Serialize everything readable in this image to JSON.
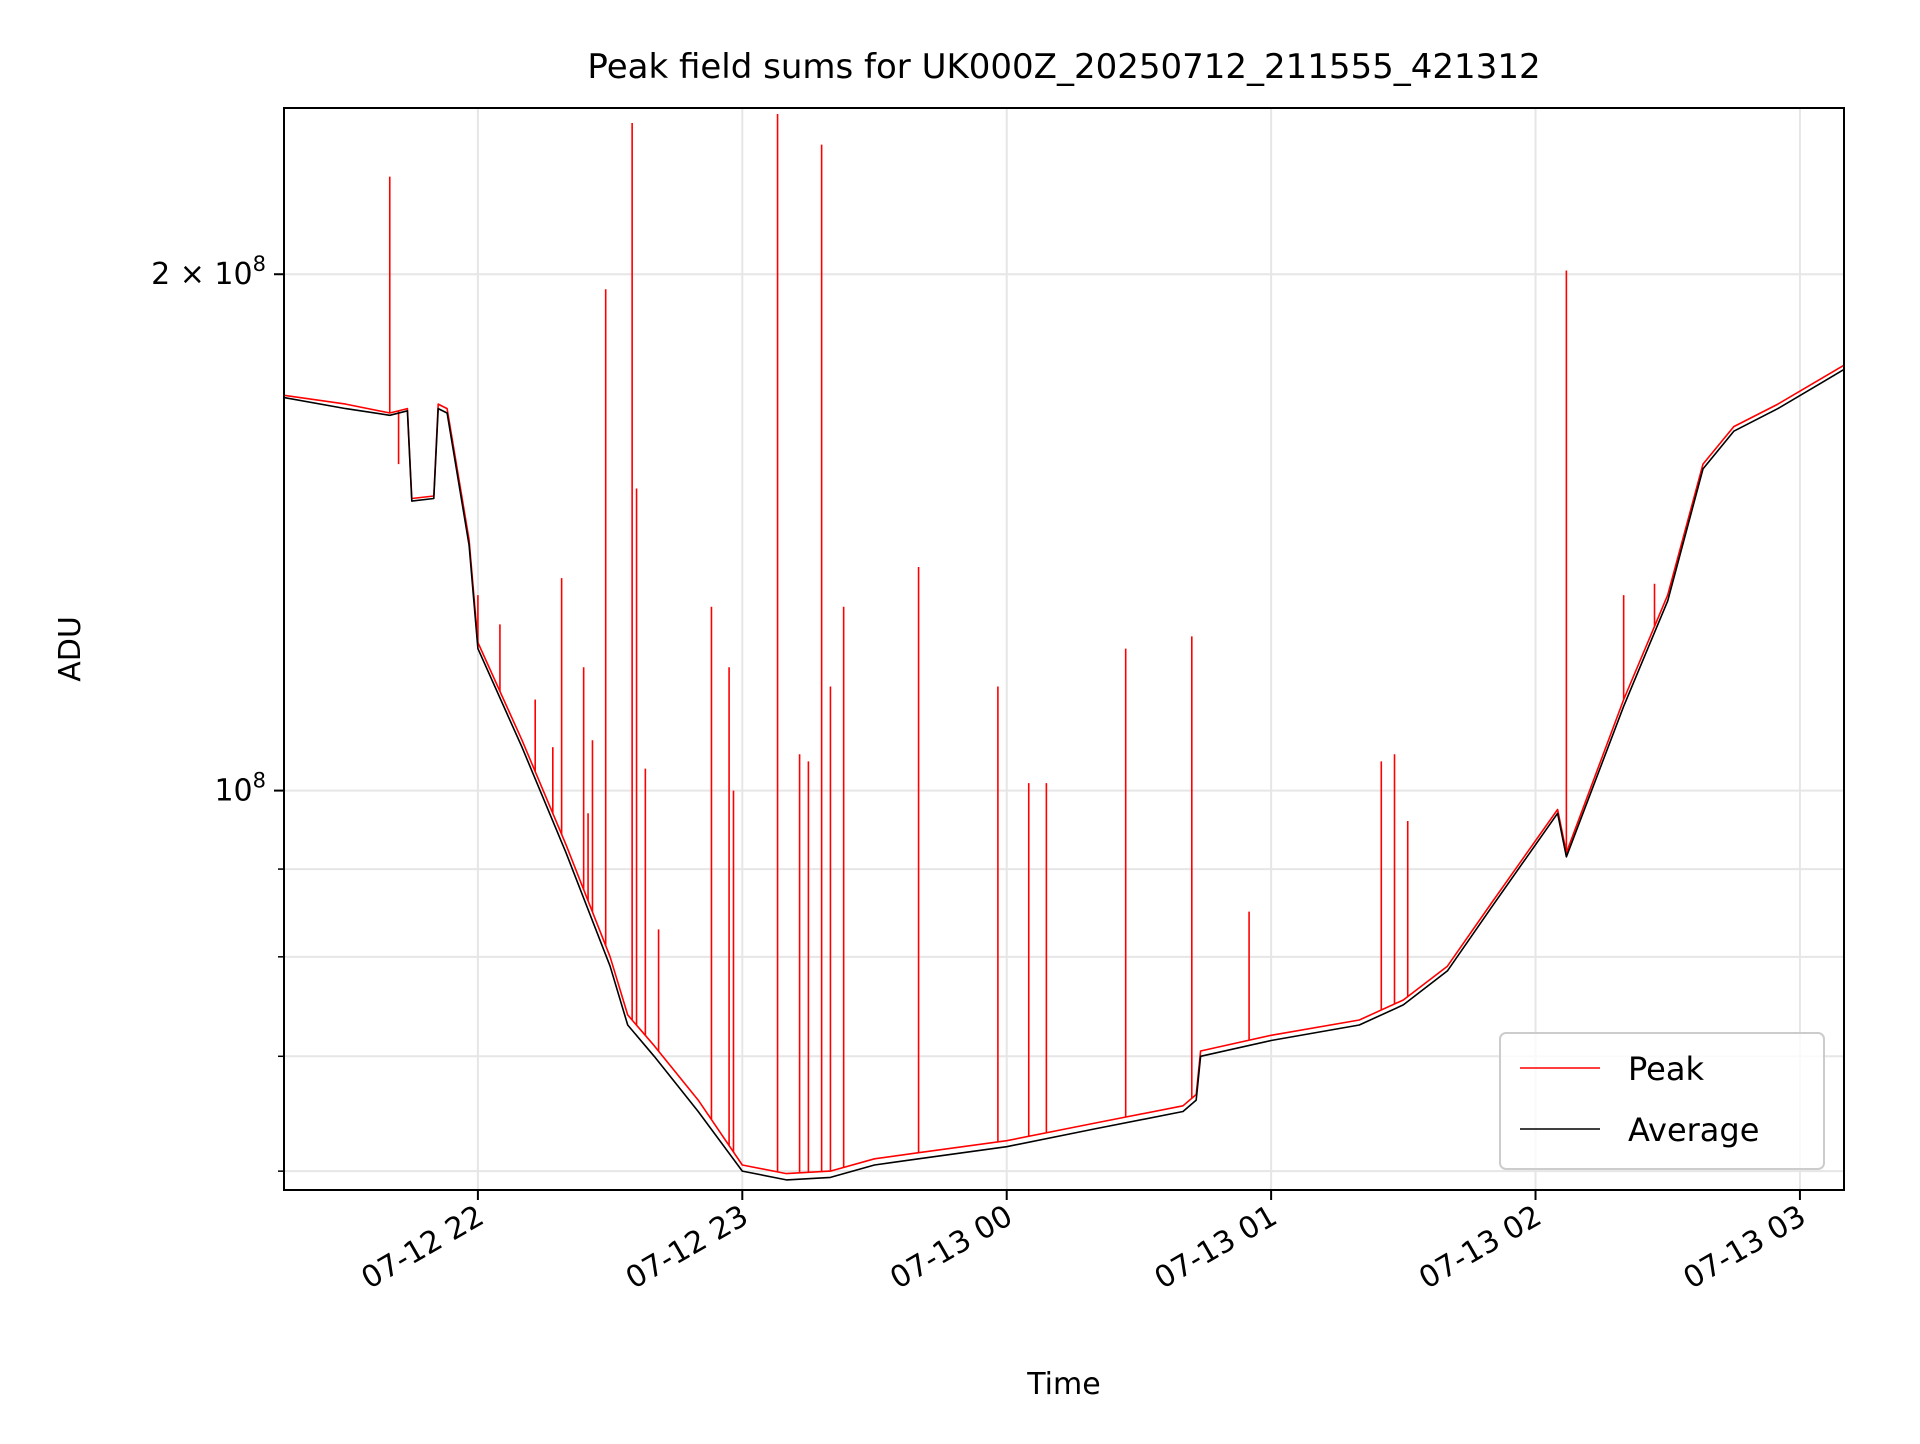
{
  "chart_data": {
    "type": "line",
    "title": "Peak field sums for UK000Z_20250712_211555_421312",
    "xlabel": "Time",
    "ylabel": "ADU",
    "x_axis": {
      "type": "datetime",
      "range": [
        "2025-07-12 21:16",
        "2025-07-13 03:10"
      ],
      "ticks": [
        {
          "value": "2025-07-12 22:00",
          "label": "07-12 22"
        },
        {
          "value": "2025-07-12 23:00",
          "label": "07-12 23"
        },
        {
          "value": "2025-07-13 00:00",
          "label": "07-13 00"
        },
        {
          "value": "2025-07-13 01:00",
          "label": "07-13 01"
        },
        {
          "value": "2025-07-13 02:00",
          "label": "07-13 02"
        },
        {
          "value": "2025-07-13 03:00",
          "label": "07-13 03"
        }
      ]
    },
    "y_axis": {
      "scale": "log",
      "range": [
        58500000,
        250000000
      ],
      "major_ticks": [
        {
          "value": 100000000,
          "label_base": "10",
          "label_exp": "8"
        },
        {
          "value": 200000000,
          "label_base": "2 × 10",
          "label_exp": "8"
        }
      ],
      "minor_ticks": [
        60000000,
        70000000,
        80000000,
        90000000
      ]
    },
    "grid": true,
    "legend_position": "lower-right",
    "series": [
      {
        "name": "Peak",
        "color": "#ff0000",
        "points": [
          [
            "2025-07-12 21:16",
            170000000
          ],
          [
            "2025-07-12 21:30",
            168000000
          ],
          [
            "2025-07-12 21:40",
            166000000
          ],
          [
            "2025-07-12 21:44",
            167000000
          ],
          [
            "2025-07-12 21:45",
            148000000
          ],
          [
            "2025-07-12 21:50",
            148500000
          ],
          [
            "2025-07-12 21:51",
            168000000
          ],
          [
            "2025-07-12 21:53",
            167000000
          ],
          [
            "2025-07-12 21:58",
            140000000
          ],
          [
            "2025-07-12 22:00",
            122000000
          ],
          [
            "2025-07-12 22:10",
            107000000
          ],
          [
            "2025-07-12 22:20",
            93000000
          ],
          [
            "2025-07-12 22:30",
            80000000
          ],
          [
            "2025-07-12 22:34",
            74000000
          ],
          [
            "2025-07-12 22:40",
            71000000
          ],
          [
            "2025-07-12 22:50",
            66000000
          ],
          [
            "2025-07-12 23:00",
            60500000
          ],
          [
            "2025-07-12 23:10",
            59800000
          ],
          [
            "2025-07-12 23:20",
            60000000
          ],
          [
            "2025-07-12 23:30",
            61000000
          ],
          [
            "2025-07-12 23:40",
            61500000
          ],
          [
            "2025-07-13 00:00",
            62500000
          ],
          [
            "2025-07-13 00:20",
            64000000
          ],
          [
            "2025-07-13 00:40",
            65500000
          ],
          [
            "2025-07-13 00:43",
            66500000
          ],
          [
            "2025-07-13 00:44",
            70500000
          ],
          [
            "2025-07-13 01:00",
            72000000
          ],
          [
            "2025-07-13 01:20",
            73500000
          ],
          [
            "2025-07-13 01:30",
            75500000
          ],
          [
            "2025-07-13 01:40",
            79000000
          ],
          [
            "2025-07-13 01:50",
            86000000
          ],
          [
            "2025-07-13 02:05",
            97500000
          ],
          [
            "2025-07-13 02:07",
            92000000
          ],
          [
            "2025-07-13 02:20",
            113000000
          ],
          [
            "2025-07-13 02:30",
            130000000
          ],
          [
            "2025-07-13 02:38",
            155000000
          ],
          [
            "2025-07-13 02:45",
            163000000
          ],
          [
            "2025-07-13 02:55",
            168000000
          ],
          [
            "2025-07-13 03:10",
            177000000
          ]
        ],
        "spikes": [
          [
            "2025-07-12 21:40",
            228000000
          ],
          [
            "2025-07-12 21:42",
            155000000
          ],
          [
            "2025-07-12 22:00",
            130000000
          ],
          [
            "2025-07-12 22:05",
            125000000
          ],
          [
            "2025-07-12 22:13",
            113000000
          ],
          [
            "2025-07-12 22:17",
            106000000
          ],
          [
            "2025-07-12 22:19",
            133000000
          ],
          [
            "2025-07-12 22:24",
            118000000
          ],
          [
            "2025-07-12 22:25",
            97000000
          ],
          [
            "2025-07-12 22:26",
            107000000
          ],
          [
            "2025-07-12 22:29",
            196000000
          ],
          [
            "2025-07-12 22:35",
            245000000
          ],
          [
            "2025-07-12 22:36",
            150000000
          ],
          [
            "2025-07-12 22:38",
            103000000
          ],
          [
            "2025-07-12 22:41",
            83000000
          ],
          [
            "2025-07-12 22:53",
            128000000
          ],
          [
            "2025-07-12 22:57",
            118000000
          ],
          [
            "2025-07-12 22:58",
            100000000
          ],
          [
            "2025-07-12 23:08",
            248000000
          ],
          [
            "2025-07-12 23:13",
            105000000
          ],
          [
            "2025-07-12 23:15",
            104000000
          ],
          [
            "2025-07-12 23:18",
            238000000
          ],
          [
            "2025-07-12 23:20",
            115000000
          ],
          [
            "2025-07-12 23:23",
            128000000
          ],
          [
            "2025-07-12 23:40",
            135000000
          ],
          [
            "2025-07-12 23:58",
            115000000
          ],
          [
            "2025-07-13 00:05",
            101000000
          ],
          [
            "2025-07-13 00:09",
            101000000
          ],
          [
            "2025-07-13 00:27",
            121000000
          ],
          [
            "2025-07-13 00:42",
            123000000
          ],
          [
            "2025-07-13 00:55",
            85000000
          ],
          [
            "2025-07-13 01:25",
            104000000
          ],
          [
            "2025-07-13 01:28",
            105000000
          ],
          [
            "2025-07-13 01:31",
            96000000
          ],
          [
            "2025-07-13 02:07",
            201000000
          ],
          [
            "2025-07-13 02:20",
            130000000
          ],
          [
            "2025-07-13 02:27",
            132000000
          ]
        ]
      },
      {
        "name": "Average",
        "color": "#000000",
        "points": [
          [
            "2025-07-12 21:16",
            169500000
          ],
          [
            "2025-07-12 21:30",
            167000000
          ],
          [
            "2025-07-12 21:40",
            165500000
          ],
          [
            "2025-07-12 21:44",
            166500000
          ],
          [
            "2025-07-12 21:45",
            147500000
          ],
          [
            "2025-07-12 21:50",
            148000000
          ],
          [
            "2025-07-12 21:51",
            167000000
          ],
          [
            "2025-07-12 21:53",
            166000000
          ],
          [
            "2025-07-12 21:58",
            139000000
          ],
          [
            "2025-07-12 22:00",
            121000000
          ],
          [
            "2025-07-12 22:10",
            106000000
          ],
          [
            "2025-07-12 22:20",
            92000000
          ],
          [
            "2025-07-12 22:30",
            79000000
          ],
          [
            "2025-07-12 22:34",
            73000000
          ],
          [
            "2025-07-12 22:40",
            70000000
          ],
          [
            "2025-07-12 22:50",
            65000000
          ],
          [
            "2025-07-12 23:00",
            60000000
          ],
          [
            "2025-07-12 23:10",
            59300000
          ],
          [
            "2025-07-12 23:20",
            59500000
          ],
          [
            "2025-07-12 23:30",
            60500000
          ],
          [
            "2025-07-12 23:40",
            61000000
          ],
          [
            "2025-07-13 00:00",
            62000000
          ],
          [
            "2025-07-13 00:20",
            63500000
          ],
          [
            "2025-07-13 00:40",
            65000000
          ],
          [
            "2025-07-13 00:43",
            66000000
          ],
          [
            "2025-07-13 00:44",
            70000000
          ],
          [
            "2025-07-13 01:00",
            71500000
          ],
          [
            "2025-07-13 01:20",
            73000000
          ],
          [
            "2025-07-13 01:30",
            75000000
          ],
          [
            "2025-07-13 01:40",
            78500000
          ],
          [
            "2025-07-13 01:50",
            85500000
          ],
          [
            "2025-07-13 02:05",
            97000000
          ],
          [
            "2025-07-13 02:07",
            91500000
          ],
          [
            "2025-07-13 02:20",
            112000000
          ],
          [
            "2025-07-13 02:30",
            129000000
          ],
          [
            "2025-07-13 02:38",
            154000000
          ],
          [
            "2025-07-13 02:45",
            162000000
          ],
          [
            "2025-07-13 02:55",
            167000000
          ],
          [
            "2025-07-13 03:10",
            176000000
          ]
        ]
      }
    ]
  }
}
